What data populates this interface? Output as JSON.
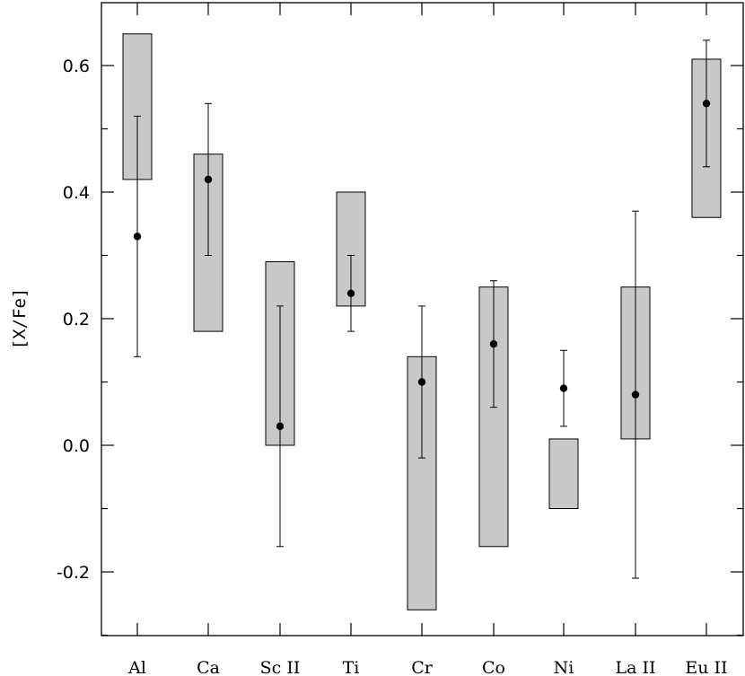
{
  "chart_data": {
    "type": "scatter",
    "title": "",
    "xlabel": "",
    "ylabel": "[X/Fe]",
    "ylim": [
      -0.3,
      0.7
    ],
    "y_ticks": [
      "-0.2",
      "0.0",
      "0.2",
      "0.4",
      "0.6"
    ],
    "y_tick_values": [
      -0.2,
      0.0,
      0.2,
      0.4,
      0.6
    ],
    "grid": false,
    "legend": "none",
    "box_fill": "#c8c8c8",
    "point_color": "#000000",
    "categories": [
      "Al",
      "Ca",
      "Sc II",
      "Ti",
      "Cr",
      "Co",
      "Ni",
      "La II",
      "Eu II"
    ],
    "points": [
      {
        "element": "Al",
        "value": 0.33,
        "err_low": 0.14,
        "err_high": 0.52,
        "range_low": 0.42,
        "range_high": 0.65
      },
      {
        "element": "Ca",
        "value": 0.42,
        "err_low": 0.3,
        "err_high": 0.54,
        "range_low": 0.18,
        "range_high": 0.46
      },
      {
        "element": "Sc II",
        "value": 0.03,
        "err_low": -0.16,
        "err_high": 0.22,
        "range_low": 0.0,
        "range_high": 0.29
      },
      {
        "element": "Ti",
        "value": 0.24,
        "err_low": 0.18,
        "err_high": 0.3,
        "range_low": 0.22,
        "range_high": 0.4
      },
      {
        "element": "Cr",
        "value": 0.1,
        "err_low": -0.02,
        "err_high": 0.22,
        "range_low": -0.26,
        "range_high": 0.14
      },
      {
        "element": "Co",
        "value": 0.16,
        "err_low": 0.06,
        "err_high": 0.26,
        "range_low": -0.16,
        "range_high": 0.25
      },
      {
        "element": "Ni",
        "value": 0.09,
        "err_low": 0.03,
        "err_high": 0.15,
        "range_low": -0.1,
        "range_high": 0.01
      },
      {
        "element": "La II",
        "value": 0.08,
        "err_low": -0.21,
        "err_high": 0.37,
        "range_low": 0.01,
        "range_high": 0.25
      },
      {
        "element": "Eu II",
        "value": 0.54,
        "err_low": 0.44,
        "err_high": 0.64,
        "range_low": 0.36,
        "range_high": 0.61
      }
    ]
  }
}
